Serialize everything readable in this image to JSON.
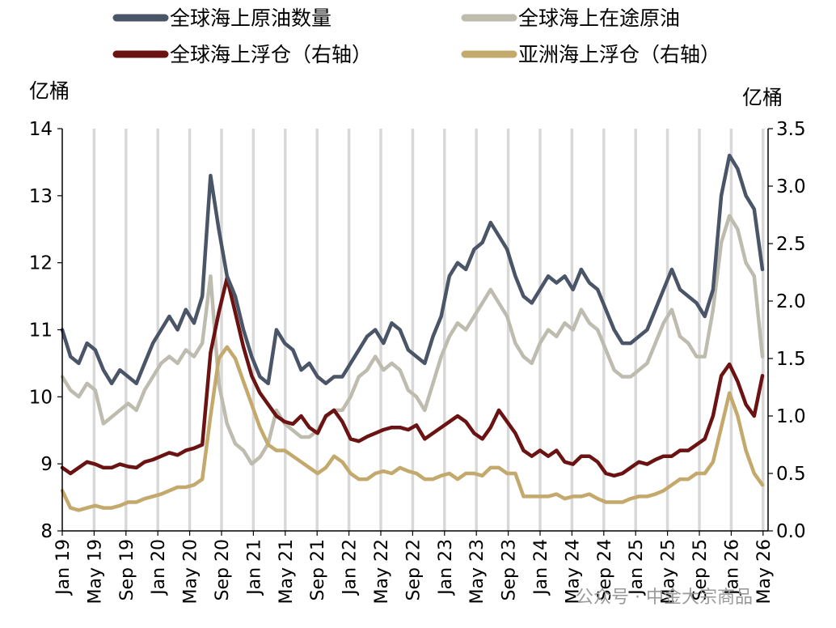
{
  "chart_data": {
    "type": "line",
    "title": "",
    "x_ticks": [
      "Jan 19",
      "May 19",
      "Sep 19",
      "Jan 20",
      "May 20",
      "Sep 20",
      "Jan 21",
      "May 21",
      "Sep 21",
      "Jan 22",
      "May 22",
      "Sep 22",
      "Jan 23",
      "May 23",
      "Sep 23",
      "Jan 24",
      "May 24",
      "Sep 24",
      "Jan 25",
      "May 25",
      "Sep 25",
      "Jan 26",
      "May 26"
    ],
    "x_range": [
      "Jan 19",
      "Apr 26"
    ],
    "left_axis": {
      "unit": "亿桶",
      "ticks": [
        "8",
        "9",
        "10",
        "11",
        "12",
        "13",
        "14"
      ],
      "ylim": [
        8,
        14
      ]
    },
    "right_axis": {
      "unit": "亿桶",
      "ticks": [
        "0.0",
        "0.5",
        "1.0",
        "1.5",
        "2.0",
        "2.5",
        "3.0",
        "3.5"
      ],
      "ylim": [
        0,
        3.5
      ]
    },
    "grid": "vertical lines at x ticks",
    "legend_position": "top",
    "series": [
      {
        "name": "全球海上原油数量",
        "axis": "left",
        "color": "#4a5568",
        "values": [
          11.0,
          10.6,
          10.5,
          10.8,
          10.7,
          10.4,
          10.2,
          10.4,
          10.3,
          10.2,
          10.5,
          10.8,
          11.0,
          11.2,
          11.0,
          11.3,
          11.1,
          11.5,
          13.3,
          12.5,
          11.8,
          11.5,
          11.0,
          10.6,
          10.3,
          10.2,
          11.0,
          10.8,
          10.7,
          10.4,
          10.5,
          10.3,
          10.2,
          10.3,
          10.3,
          10.5,
          10.7,
          10.9,
          11.0,
          10.8,
          11.1,
          11.0,
          10.7,
          10.6,
          10.5,
          10.9,
          11.2,
          11.8,
          12.0,
          11.9,
          12.2,
          12.3,
          12.6,
          12.4,
          12.2,
          11.8,
          11.5,
          11.4,
          11.6,
          11.8,
          11.7,
          11.8,
          11.6,
          11.9,
          11.7,
          11.6,
          11.3,
          11.0,
          10.8,
          10.8,
          10.9,
          11.0,
          11.3,
          11.6,
          11.9,
          11.6,
          11.5,
          11.4,
          11.2,
          11.6,
          13.0,
          13.6,
          13.4,
          13.0,
          12.8,
          11.9
        ]
      },
      {
        "name": "全球海上在途原油",
        "axis": "left",
        "color": "#bebcae",
        "values": [
          10.3,
          10.1,
          10.0,
          10.2,
          10.1,
          9.6,
          9.7,
          9.8,
          9.9,
          9.8,
          10.1,
          10.3,
          10.5,
          10.6,
          10.5,
          10.7,
          10.6,
          10.8,
          11.8,
          10.2,
          9.6,
          9.3,
          9.2,
          9.0,
          9.1,
          9.3,
          9.8,
          9.6,
          9.5,
          9.4,
          9.4,
          9.5,
          9.7,
          9.8,
          9.8,
          10.0,
          10.3,
          10.4,
          10.6,
          10.4,
          10.5,
          10.4,
          10.1,
          10.0,
          9.8,
          10.2,
          10.6,
          10.9,
          11.1,
          11.0,
          11.2,
          11.4,
          11.6,
          11.4,
          11.2,
          10.8,
          10.6,
          10.5,
          10.8,
          11.0,
          10.9,
          11.1,
          11.0,
          11.3,
          11.1,
          11.0,
          10.7,
          10.4,
          10.3,
          10.3,
          10.4,
          10.5,
          10.8,
          11.1,
          11.3,
          10.9,
          10.8,
          10.6,
          10.6,
          11.3,
          12.3,
          12.7,
          12.5,
          12.0,
          11.8,
          10.6
        ]
      },
      {
        "name": "全球海上浮仓（右轴）",
        "axis": "right",
        "color": "#6b1313",
        "values": [
          0.55,
          0.5,
          0.55,
          0.6,
          0.58,
          0.55,
          0.55,
          0.58,
          0.56,
          0.55,
          0.6,
          0.62,
          0.65,
          0.68,
          0.66,
          0.7,
          0.72,
          0.75,
          1.55,
          1.9,
          2.2,
          1.9,
          1.6,
          1.35,
          1.2,
          1.1,
          1.0,
          0.95,
          0.93,
          1.0,
          0.9,
          0.85,
          1.0,
          1.05,
          0.95,
          0.8,
          0.78,
          0.82,
          0.85,
          0.88,
          0.9,
          0.9,
          0.88,
          0.92,
          0.8,
          0.85,
          0.9,
          0.95,
          1.0,
          0.95,
          0.85,
          0.8,
          0.9,
          1.05,
          0.95,
          0.85,
          0.7,
          0.65,
          0.7,
          0.65,
          0.7,
          0.6,
          0.58,
          0.65,
          0.65,
          0.6,
          0.5,
          0.48,
          0.5,
          0.55,
          0.6,
          0.58,
          0.62,
          0.65,
          0.65,
          0.7,
          0.7,
          0.75,
          0.8,
          1.0,
          1.35,
          1.45,
          1.3,
          1.1,
          1.0,
          1.35
        ]
      },
      {
        "name": "亚洲海上浮仓（右轴）",
        "axis": "right",
        "color": "#c4a96d",
        "values": [
          0.35,
          0.2,
          0.18,
          0.2,
          0.22,
          0.2,
          0.2,
          0.22,
          0.25,
          0.25,
          0.28,
          0.3,
          0.32,
          0.35,
          0.38,
          0.38,
          0.4,
          0.45,
          1.0,
          1.5,
          1.6,
          1.5,
          1.3,
          1.1,
          0.9,
          0.75,
          0.7,
          0.7,
          0.65,
          0.6,
          0.55,
          0.5,
          0.55,
          0.65,
          0.6,
          0.5,
          0.45,
          0.45,
          0.5,
          0.52,
          0.5,
          0.55,
          0.52,
          0.5,
          0.45,
          0.45,
          0.48,
          0.5,
          0.45,
          0.5,
          0.5,
          0.48,
          0.55,
          0.55,
          0.5,
          0.5,
          0.3,
          0.3,
          0.3,
          0.3,
          0.32,
          0.28,
          0.3,
          0.3,
          0.32,
          0.28,
          0.25,
          0.25,
          0.25,
          0.28,
          0.3,
          0.3,
          0.32,
          0.35,
          0.4,
          0.45,
          0.45,
          0.5,
          0.5,
          0.6,
          0.9,
          1.2,
          1.0,
          0.7,
          0.5,
          0.4
        ]
      }
    ]
  },
  "watermark": "公众号 · 中金大宗商品"
}
